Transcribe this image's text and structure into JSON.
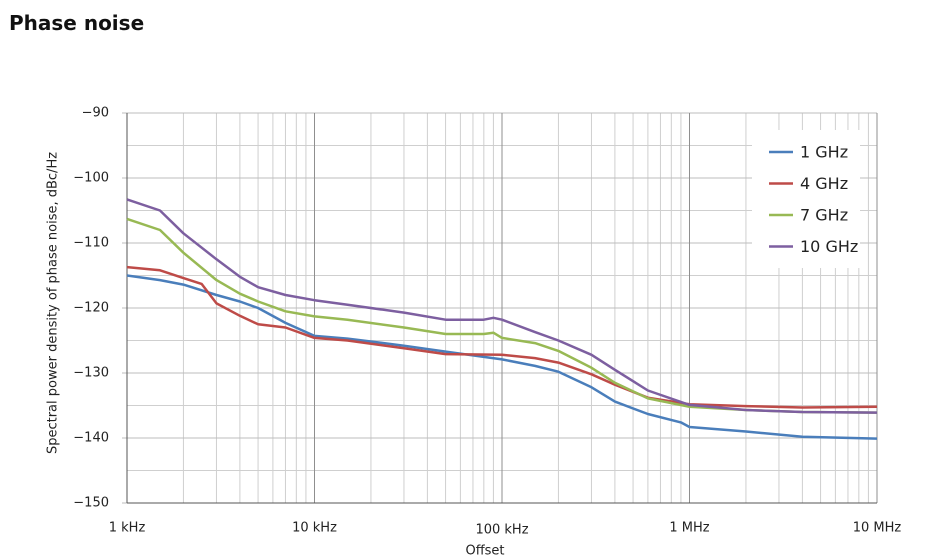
{
  "page_title": "Phase noise",
  "chart_data": {
    "type": "line",
    "x_log": true,
    "x_label": "Offset",
    "y_label": "Spectral power density of phase noise, dBc/Hz",
    "xlim": [
      1000,
      10000000
    ],
    "xticks": [
      {
        "value": 1000,
        "label": "1 kHz"
      },
      {
        "value": 10000,
        "label": "10 kHz"
      },
      {
        "value": 100000,
        "label": "100 kHz"
      },
      {
        "value": 1000000,
        "label": "1 MHz"
      },
      {
        "value": 10000000,
        "label": "10 MHz"
      }
    ],
    "minor_xticks": [
      2000,
      3000,
      4000,
      5000,
      6000,
      7000,
      8000,
      9000,
      20000,
      30000,
      40000,
      50000,
      60000,
      70000,
      80000,
      90000,
      200000,
      300000,
      400000,
      500000,
      600000,
      700000,
      800000,
      900000,
      2000000,
      3000000,
      4000000,
      5000000,
      6000000,
      7000000,
      8000000,
      9000000
    ],
    "ylim": [
      -150,
      -90
    ],
    "yticks": [
      {
        "value": -90,
        "label": "−90"
      },
      {
        "value": -100,
        "label": "−100"
      },
      {
        "value": -110,
        "label": "−110"
      },
      {
        "value": -120,
        "label": "−120"
      },
      {
        "value": -130,
        "label": "−130"
      },
      {
        "value": -140,
        "label": "−140"
      },
      {
        "value": -150,
        "label": "−150"
      }
    ],
    "minor_yticks": [
      -95,
      -105,
      -115,
      -125,
      -135,
      -145
    ],
    "grid": true,
    "legend": "top-right",
    "series": [
      {
        "name": "1 GHz",
        "color": "#4a7ebb",
        "x": [
          1000,
          1500,
          2000,
          3000,
          4000,
          5000,
          7000,
          10000,
          15000,
          30000,
          50000,
          100000,
          150000,
          200000,
          300000,
          400000,
          600000,
          900000,
          1000000,
          2000000,
          4000000,
          10000000
        ],
        "values": [
          -115,
          -115.7,
          -116.4,
          -118,
          -119,
          -120,
          -122.3,
          -124.3,
          -124.7,
          -125.8,
          -126.7,
          -127.9,
          -128.9,
          -129.8,
          -132.2,
          -134.4,
          -136.3,
          -137.6,
          -138.3,
          -139,
          -139.8,
          -140.1
        ]
      },
      {
        "name": "4 GHz",
        "color": "#be4b48",
        "x": [
          1000,
          1500,
          2000,
          2500,
          3000,
          4000,
          5000,
          7000,
          10000,
          15000,
          30000,
          50000,
          100000,
          150000,
          200000,
          300000,
          400000,
          600000,
          1000000,
          2000000,
          4000000,
          10000000
        ],
        "values": [
          -113.7,
          -114.2,
          -115.4,
          -116.3,
          -119.3,
          -121.2,
          -122.5,
          -123,
          -124.6,
          -125,
          -126.2,
          -127.1,
          -127.2,
          -127.7,
          -128.4,
          -130.2,
          -131.8,
          -133.8,
          -134.8,
          -135.1,
          -135.3,
          -135.2
        ]
      },
      {
        "name": "7 GHz",
        "color": "#98b954",
        "x": [
          1000,
          1500,
          2000,
          3000,
          4000,
          5000,
          7000,
          10000,
          15000,
          30000,
          50000,
          80000,
          90000,
          100000,
          150000,
          200000,
          300000,
          400000,
          600000,
          1000000,
          2000000,
          4000000,
          10000000
        ],
        "values": [
          -106.3,
          -108,
          -111.5,
          -115.7,
          -117.8,
          -119,
          -120.5,
          -121.3,
          -121.8,
          -123,
          -124,
          -124,
          -123.8,
          -124.6,
          -125.4,
          -126.6,
          -129.2,
          -131.5,
          -133.9,
          -135.2,
          -135.7,
          -136,
          -136.1
        ]
      },
      {
        "name": "10 GHz",
        "color": "#7d5fa0",
        "x": [
          1000,
          1500,
          2000,
          3000,
          4000,
          5000,
          7000,
          10000,
          15000,
          30000,
          50000,
          80000,
          90000,
          100000,
          150000,
          200000,
          300000,
          400000,
          600000,
          1000000,
          2000000,
          4000000,
          10000000
        ],
        "values": [
          -103.3,
          -105,
          -108.5,
          -112.5,
          -115.2,
          -116.8,
          -118,
          -118.8,
          -119.5,
          -120.7,
          -121.8,
          -121.8,
          -121.5,
          -121.8,
          -123.7,
          -125,
          -127.2,
          -129.5,
          -132.7,
          -134.9,
          -135.7,
          -136,
          -136.1
        ]
      }
    ]
  }
}
